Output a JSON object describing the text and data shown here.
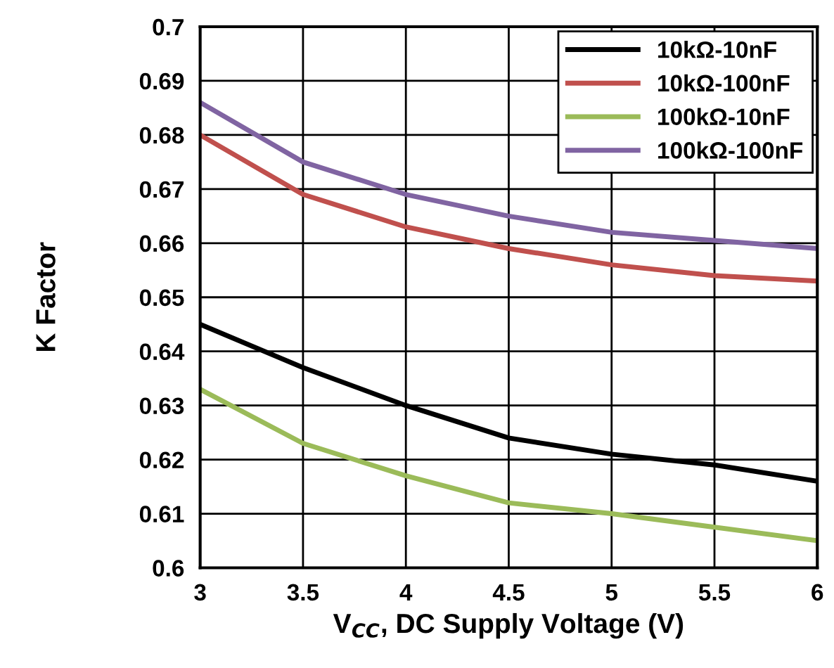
{
  "chart_data": {
    "type": "line",
    "xlabel": "V$_{CC}$, DC Supply Voltage (V)",
    "ylabel": "K Factor",
    "x": [
      3,
      3.5,
      4,
      4.5,
      5,
      5.5,
      6
    ],
    "series": [
      {
        "name": "10kΩ-10nF",
        "color": "#000000",
        "values": [
          0.645,
          0.637,
          0.63,
          0.624,
          0.621,
          0.619,
          0.616
        ]
      },
      {
        "name": "10kΩ-100nF",
        "color": "#c0504d",
        "values": [
          0.68,
          0.669,
          0.663,
          0.659,
          0.656,
          0.654,
          0.653
        ]
      },
      {
        "name": "100kΩ-10nF",
        "color": "#9bbb59",
        "values": [
          0.633,
          0.623,
          0.617,
          0.612,
          0.61,
          0.6075,
          0.605
        ]
      },
      {
        "name": "100kΩ-100nF",
        "color": "#8064a2",
        "values": [
          0.686,
          0.675,
          0.669,
          0.665,
          0.662,
          0.6605,
          0.659
        ]
      }
    ],
    "xlim": [
      3,
      6
    ],
    "xticks": [
      3,
      3.5,
      4,
      4.5,
      5,
      5.5,
      6
    ],
    "ylim": [
      0.6,
      0.7
    ],
    "yticks": [
      0.6,
      0.61,
      0.62,
      0.63,
      0.64,
      0.65,
      0.66,
      0.67,
      0.68,
      0.69,
      0.7
    ],
    "grid": true,
    "legend": "top right",
    "marker": "none",
    "line_style": "solid"
  }
}
